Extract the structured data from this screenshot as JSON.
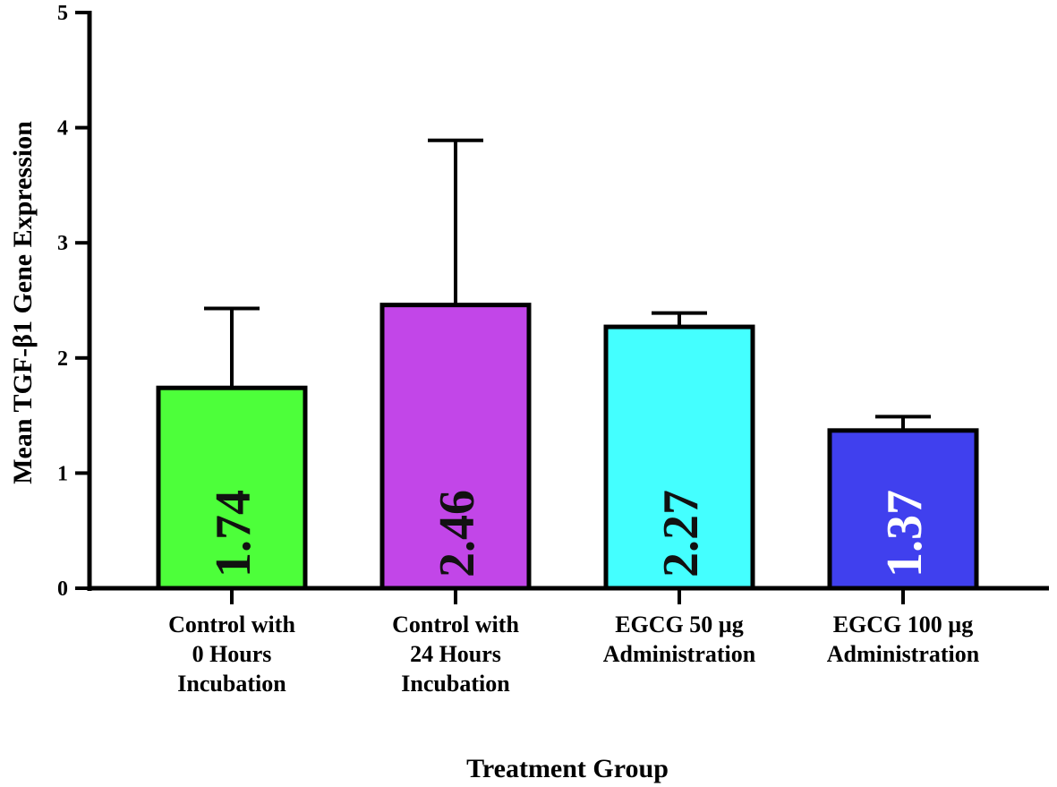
{
  "chart_data": {
    "type": "bar",
    "title": "",
    "xlabel": "Treatment Group",
    "ylabel": "Mean TGF-β1 Gene Expression",
    "ylim": [
      0,
      5
    ],
    "yticks": [
      "0",
      "1",
      "2",
      "3",
      "4",
      "5"
    ],
    "grid": false,
    "categories": [
      [
        "Control with",
        "0 Hours",
        "Incubation"
      ],
      [
        "Control with",
        "24 Hours",
        "Incubation"
      ],
      [
        "EGCG 50 µg",
        "Administration"
      ],
      [
        "EGCG 100 µg",
        "Administration"
      ]
    ],
    "values": [
      1.74,
      2.46,
      2.27,
      1.37
    ],
    "value_labels": [
      "1.74",
      "2.46",
      "2.27",
      "1.37"
    ],
    "error_upper": [
      2.43,
      3.89,
      2.39,
      1.49
    ],
    "colors": [
      "#4dff3a",
      "#c246e8",
      "#44ffff",
      "#4040ee"
    ],
    "label_colors": [
      "#111111",
      "#111111",
      "#111111",
      "#ffffff"
    ]
  }
}
